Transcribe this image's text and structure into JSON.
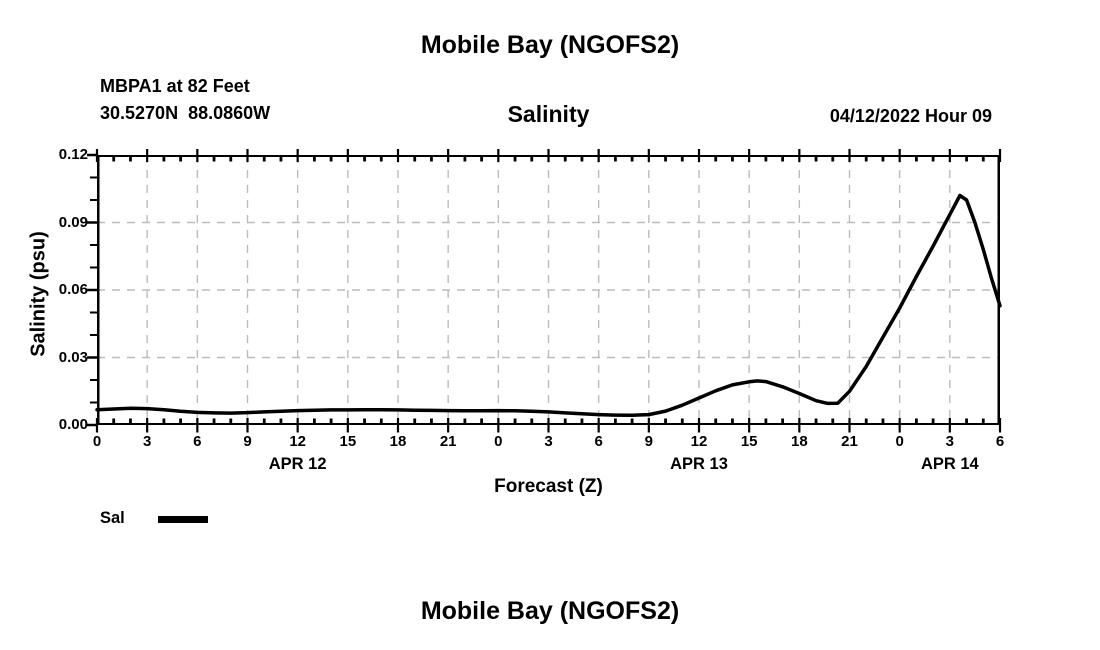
{
  "page": {
    "background": "#ffffff"
  },
  "header": {
    "title": "Mobile Bay (NGOFS2)",
    "station": "MBPA1 at 82 Feet",
    "coordinates": "30.5270N  88.0860W",
    "subtitle": "Salinity",
    "datetime": "04/12/2022 Hour 09"
  },
  "footer": {
    "title": "Mobile Bay (NGOFS2)"
  },
  "chart_data": {
    "type": "line",
    "title": "Salinity",
    "xlabel": "Forecast (Z)",
    "ylabel": "Salinity (psu)",
    "ylim": [
      0,
      0.12
    ],
    "xlim_hours": [
      0,
      54
    ],
    "grid": true,
    "grid_color": "#bcbcbc",
    "axis_color": "#000000",
    "line_color": "#000000",
    "y_major_ticks": {
      "values": [
        0,
        0.03,
        0.06,
        0.09,
        0.12
      ],
      "labels": [
        "0.00",
        "0.03",
        "0.06",
        "0.09",
        "0.12"
      ]
    },
    "y_minor_step": 0.01,
    "x_major_ticks": {
      "hours": [
        0,
        3,
        6,
        9,
        12,
        15,
        18,
        21,
        24,
        27,
        30,
        33,
        36,
        39,
        42,
        45,
        48,
        51,
        54
      ],
      "labels": [
        "0",
        "3",
        "6",
        "9",
        "12",
        "15",
        "18",
        "21",
        "0",
        "3",
        "6",
        "9",
        "12",
        "15",
        "18",
        "21",
        "0",
        "3",
        "6"
      ]
    },
    "x_minor_step_hours": 1,
    "day_labels": [
      {
        "label": "APR 12",
        "hour": 12
      },
      {
        "label": "APR 13",
        "hour": 36
      },
      {
        "label": "APR 14",
        "hour": 51
      }
    ],
    "legend": {
      "position": "bottom-left",
      "entries": [
        {
          "label": "Sal",
          "color": "#000000"
        }
      ]
    },
    "series": [
      {
        "name": "Sal",
        "points": [
          [
            0,
            0.0068
          ],
          [
            1,
            0.0071
          ],
          [
            2,
            0.0074
          ],
          [
            3,
            0.0073
          ],
          [
            4,
            0.0068
          ],
          [
            5,
            0.0061
          ],
          [
            6,
            0.0056
          ],
          [
            7,
            0.0054
          ],
          [
            8,
            0.0053
          ],
          [
            9,
            0.0055
          ],
          [
            10,
            0.0058
          ],
          [
            11,
            0.0061
          ],
          [
            12,
            0.0064
          ],
          [
            13,
            0.0066
          ],
          [
            14,
            0.0067
          ],
          [
            15,
            0.0067
          ],
          [
            16,
            0.0068
          ],
          [
            17,
            0.0068
          ],
          [
            18,
            0.0067
          ],
          [
            19,
            0.0066
          ],
          [
            20,
            0.0065
          ],
          [
            21,
            0.0064
          ],
          [
            22,
            0.0063
          ],
          [
            23,
            0.0063
          ],
          [
            24,
            0.0064
          ],
          [
            25,
            0.0063
          ],
          [
            26,
            0.0061
          ],
          [
            27,
            0.0058
          ],
          [
            28,
            0.0054
          ],
          [
            29,
            0.005
          ],
          [
            30,
            0.0046
          ],
          [
            31,
            0.0044
          ],
          [
            32,
            0.0043
          ],
          [
            33,
            0.0046
          ],
          [
            34,
            0.0062
          ],
          [
            35,
            0.0088
          ],
          [
            36,
            0.012
          ],
          [
            37,
            0.0152
          ],
          [
            38,
            0.0178
          ],
          [
            39,
            0.0192
          ],
          [
            39.5,
            0.0196
          ],
          [
            40,
            0.0193
          ],
          [
            41,
            0.017
          ],
          [
            42,
            0.014
          ],
          [
            43,
            0.0108
          ],
          [
            43.7,
            0.0096
          ],
          [
            44.3,
            0.0097
          ],
          [
            45,
            0.015
          ],
          [
            46,
            0.026
          ],
          [
            47,
            0.039
          ],
          [
            48,
            0.052
          ],
          [
            49,
            0.066
          ],
          [
            50,
            0.0795
          ],
          [
            51,
            0.0935
          ],
          [
            51.6,
            0.102
          ],
          [
            52,
            0.1
          ],
          [
            52.5,
            0.09
          ],
          [
            53,
            0.078
          ],
          [
            53.5,
            0.065
          ],
          [
            54,
            0.053
          ]
        ]
      }
    ]
  }
}
